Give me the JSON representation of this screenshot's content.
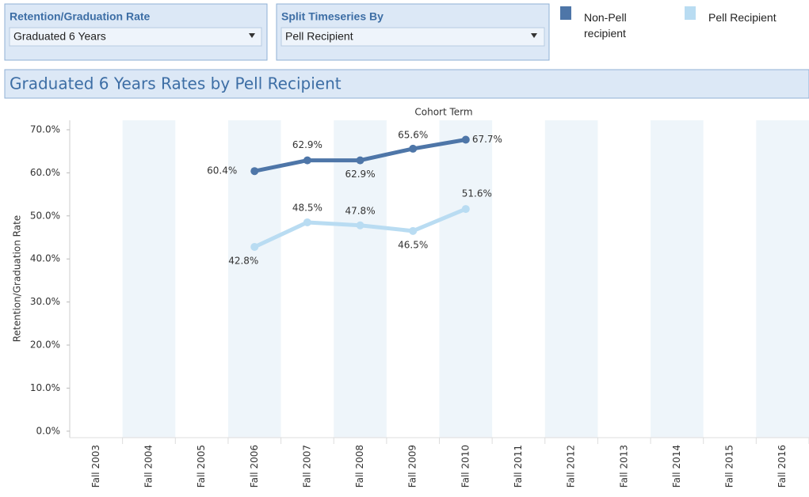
{
  "filters": [
    {
      "label": "Retention/Graduation Rate",
      "selected": "Graduated 6 Years"
    },
    {
      "label": "Split Timeseries By",
      "selected": "Pell Recipient"
    }
  ],
  "chart_data": {
    "type": "line",
    "title": "Graduated 6 Years Rates by Pell Recipient",
    "x_label": "Cohort Term",
    "y_label": "Retention/Graduation Rate",
    "categories": [
      "Fall 2003",
      "Fall 2004",
      "Fall 2005",
      "Fall 2006",
      "Fall 2007",
      "Fall 2008",
      "Fall 2009",
      "Fall 2010",
      "Fall 2011",
      "Fall 2012",
      "Fall 2013",
      "Fall 2014",
      "Fall 2015",
      "Fall 2016"
    ],
    "series": [
      {
        "name": "Non-Pell recipient",
        "color": "#4e76a8",
        "values": [
          null,
          null,
          null,
          60.4,
          62.9,
          62.9,
          65.6,
          67.7,
          null,
          null,
          null,
          null,
          null,
          null
        ],
        "value_labels": [
          null,
          null,
          null,
          "60.4%",
          "62.9%",
          "62.9%",
          "65.6%",
          "67.7%",
          null,
          null,
          null,
          null,
          null,
          null
        ]
      },
      {
        "name": "Pell Recipient",
        "color": "#b9dcf2",
        "values": [
          null,
          null,
          null,
          42.8,
          48.5,
          47.8,
          46.5,
          51.6,
          null,
          null,
          null,
          null,
          null,
          null
        ],
        "value_labels": [
          null,
          null,
          null,
          "42.8%",
          "48.5%",
          "47.8%",
          "46.5%",
          "51.6%",
          null,
          null,
          null,
          null,
          null,
          null
        ]
      }
    ],
    "ylim": [
      -1.5,
      72.2
    ],
    "yticks": [
      {
        "value": 0,
        "label": "0.0%"
      },
      {
        "value": 10,
        "label": "10.0%"
      },
      {
        "value": 20,
        "label": "20.0%"
      },
      {
        "value": 30,
        "label": "30.0%"
      },
      {
        "value": 40,
        "label": "40.0%"
      },
      {
        "value": 50,
        "label": "50.0%"
      },
      {
        "value": 60,
        "label": "60.0%"
      },
      {
        "value": 70,
        "label": "70.0%"
      }
    ],
    "band_shading": true,
    "legend": "top-right"
  }
}
